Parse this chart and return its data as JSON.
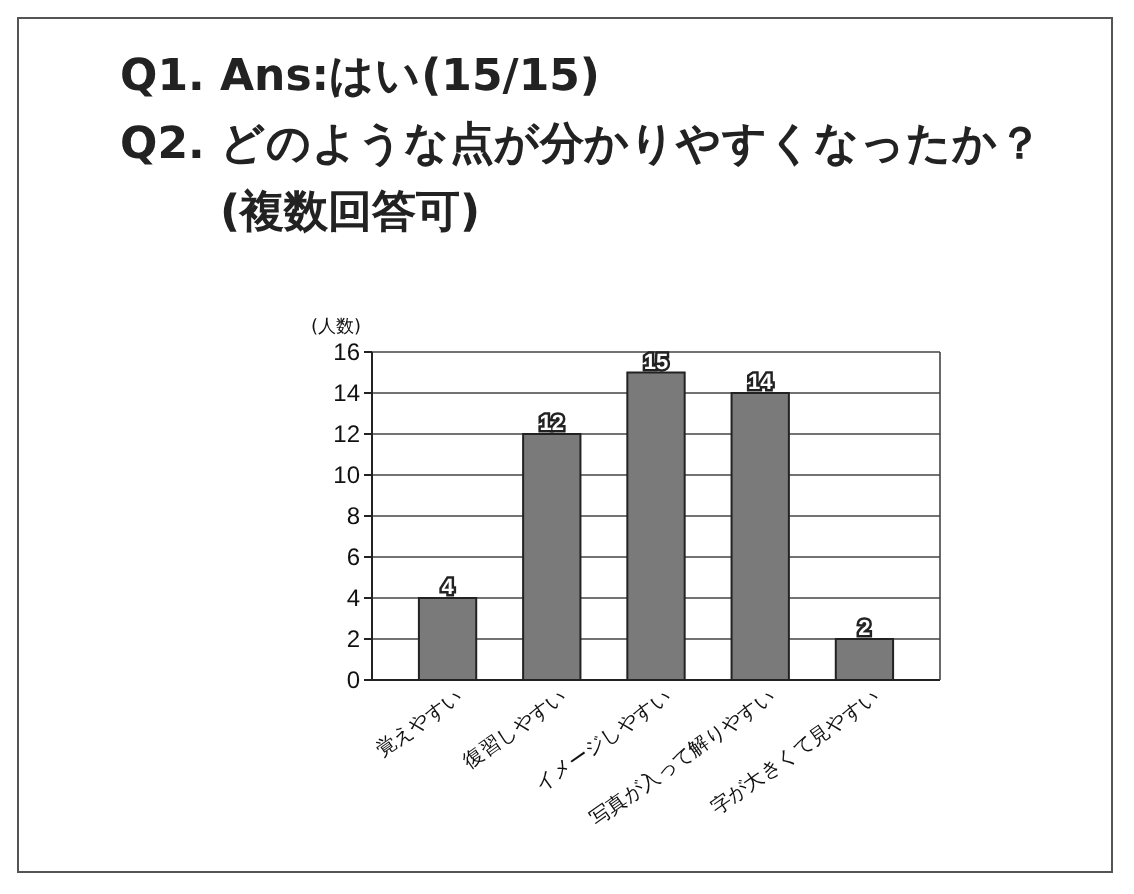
{
  "chart_data": {
    "type": "bar",
    "title": "Q1.  Ans:はい(15/15)",
    "subtitle": "Q2.  どのような点が分かりやすくなったか？(複数回答可)",
    "ylabel": "(人数)",
    "categories": [
      "覚えやすい",
      "復習しやすい",
      "イメージしやすい",
      "写真が入って解りやすい",
      "字が大きくて見やすい"
    ],
    "values": [
      4,
      12,
      15,
      14,
      2
    ],
    "color": "#7a7a7a",
    "ylim": [
      0,
      16
    ],
    "yticks": [
      0,
      2,
      4,
      6,
      8,
      10,
      12,
      14,
      16
    ],
    "grid": "y",
    "data_labels": true
  }
}
